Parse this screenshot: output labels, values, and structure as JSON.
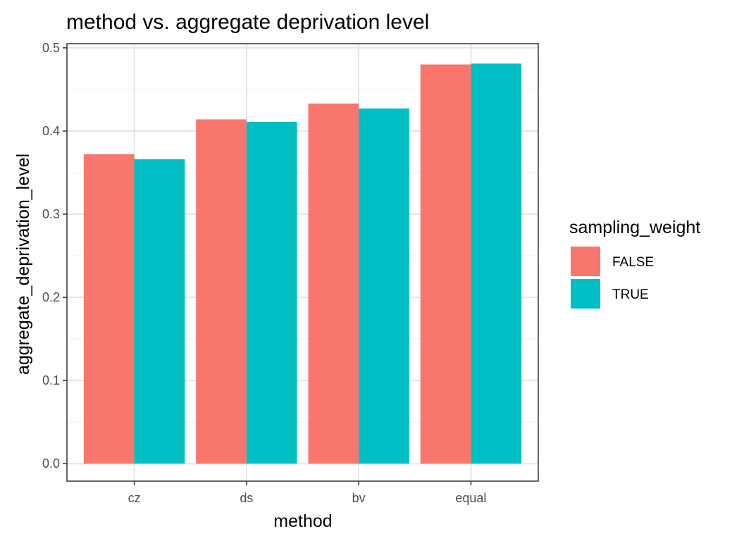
{
  "chart_data": {
    "type": "bar",
    "title": "method vs. aggregate deprivation level",
    "xlabel": "method",
    "ylabel": "aggregate_deprivation_level",
    "categories": [
      "cz",
      "ds",
      "bv",
      "equal"
    ],
    "series": [
      {
        "name": "FALSE",
        "values": [
          0.372,
          0.414,
          0.433,
          0.48
        ],
        "color": "#F8766D"
      },
      {
        "name": "TRUE",
        "values": [
          0.366,
          0.411,
          0.427,
          0.481
        ],
        "color": "#00BFC4"
      }
    ],
    "ylim": [
      -0.021,
      0.505
    ],
    "yticks": [
      0.0,
      0.1,
      0.2,
      0.3,
      0.4,
      0.5
    ],
    "ytick_labels": [
      "0.0",
      "0.1",
      "0.2",
      "0.3",
      "0.4",
      "0.5"
    ],
    "grid": true,
    "legend": {
      "title": "sampling_weight",
      "position": "right"
    }
  }
}
